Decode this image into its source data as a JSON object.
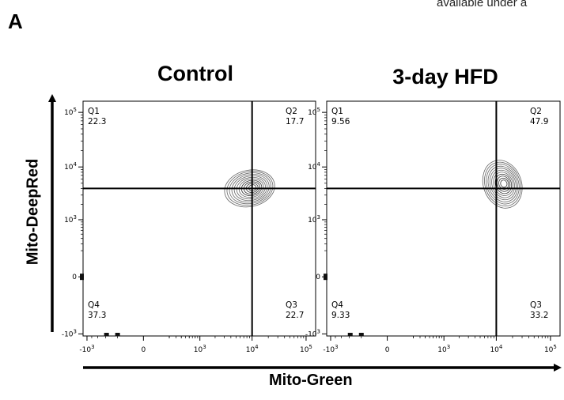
{
  "figure": {
    "panel_letter": "A",
    "header_note": "available under a",
    "x_axis_title": "Mito-Green",
    "y_axis_title": "Mito-DeepRed"
  },
  "chart_data": [
    {
      "type": "contour",
      "title": "Control",
      "xlabel": "Mito-Green",
      "ylabel": "Mito-DeepRed",
      "x_scale": "biexponential",
      "y_scale": "biexponential",
      "x_ticks": [
        "-10^3",
        "0",
        "10^3",
        "10^4",
        "10^5"
      ],
      "y_ticks": [
        "10^5",
        "10^4",
        "10^3",
        "0",
        "-10^3"
      ],
      "gate": {
        "x": 10000,
        "y": 4000
      },
      "quadrants": [
        {
          "name": "Q1",
          "value": "22.3"
        },
        {
          "name": "Q2",
          "value": "17.7"
        },
        {
          "name": "Q3",
          "value": "22.7"
        },
        {
          "name": "Q4",
          "value": "37.3"
        }
      ],
      "population_center": {
        "x": 9000,
        "y": 4000
      }
    },
    {
      "type": "contour",
      "title": "3-day HFD",
      "xlabel": "Mito-Green",
      "ylabel": "Mito-DeepRed",
      "x_scale": "biexponential",
      "y_scale": "biexponential",
      "x_ticks": [
        "-10^3",
        "0",
        "10^3",
        "10^4",
        "10^5"
      ],
      "y_ticks": [
        "10^5",
        "10^4",
        "10^3",
        "0",
        "-10^3"
      ],
      "gate": {
        "x": 10000,
        "y": 4000
      },
      "quadrants": [
        {
          "name": "Q1",
          "value": "9.56"
        },
        {
          "name": "Q2",
          "value": "47.9"
        },
        {
          "name": "Q3",
          "value": "33.2"
        },
        {
          "name": "Q4",
          "value": "9.33"
        }
      ],
      "population_center": {
        "x": 13000,
        "y": 4800
      }
    }
  ]
}
